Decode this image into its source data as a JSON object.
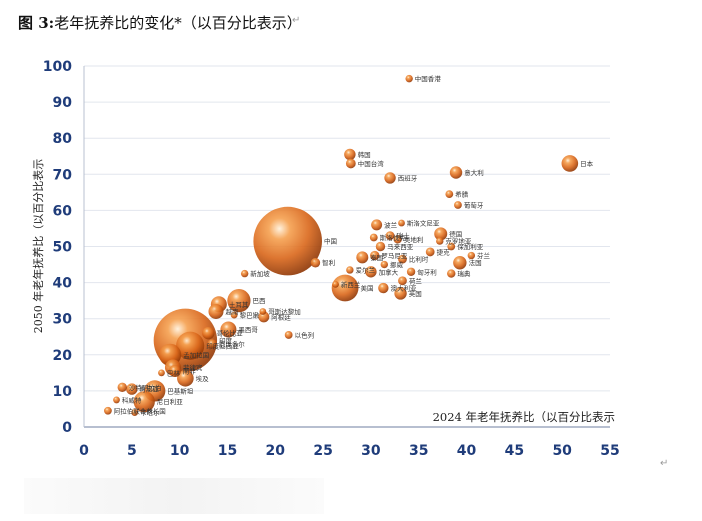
{
  "figure": {
    "caption_label": "图 3:",
    "caption_text": "老年抚养比的变化*（以百分比表示）",
    "return_mark": "↵"
  },
  "chart_data": {
    "type": "scatter",
    "subtype": "bubble",
    "xlabel": "2024 年老年抚养比（以百分比表示",
    "ylabel": "2050 年老年抚养比（以百分比表示",
    "xlim": [
      0,
      55
    ],
    "ylim": [
      0,
      100
    ],
    "x_ticks": [
      "0",
      "5",
      "10",
      "15",
      "20",
      "25",
      "30",
      "35",
      "40",
      "45",
      "50",
      "55"
    ],
    "y_ticks": [
      "0",
      "10",
      "20",
      "30",
      "40",
      "50",
      "60",
      "70",
      "80",
      "90",
      "100"
    ],
    "grid": "horizontal",
    "legend": "none",
    "bubble_color": "#d9661a",
    "points": [
      {
        "label": "中国香港",
        "x": 34.0,
        "y": 96.5,
        "size": 0.5
      },
      {
        "label": "韩国",
        "x": 27.8,
        "y": 75.5,
        "size": 1.3
      },
      {
        "label": "中国台湾",
        "x": 27.9,
        "y": 73.0,
        "size": 1.0
      },
      {
        "label": "西班牙",
        "x": 32.0,
        "y": 69.0,
        "size": 1.3
      },
      {
        "label": "意大利",
        "x": 38.9,
        "y": 70.5,
        "size": 1.5
      },
      {
        "label": "日本",
        "x": 50.8,
        "y": 73.0,
        "size": 2.3
      },
      {
        "label": "希腊",
        "x": 38.2,
        "y": 64.5,
        "size": 0.6
      },
      {
        "label": "葡萄牙",
        "x": 39.1,
        "y": 61.5,
        "size": 0.6
      },
      {
        "label": "中国",
        "x": 21.3,
        "y": 51.5,
        "size": 12.5
      },
      {
        "label": "波兰",
        "x": 30.6,
        "y": 56.0,
        "size": 1.2
      },
      {
        "label": "斯洛文尼亚",
        "x": 33.2,
        "y": 56.5,
        "size": 0.4
      },
      {
        "label": "德国",
        "x": 37.3,
        "y": 53.5,
        "size": 1.6
      },
      {
        "label": "斯洛伐克",
        "x": 30.3,
        "y": 52.5,
        "size": 0.6
      },
      {
        "label": "瑞士",
        "x": 32.0,
        "y": 53.0,
        "size": 0.8
      },
      {
        "label": "奥地利",
        "x": 32.8,
        "y": 52.0,
        "size": 0.7
      },
      {
        "label": "克罗地亚",
        "x": 37.2,
        "y": 51.5,
        "size": 0.5
      },
      {
        "label": "保加利亚",
        "x": 38.4,
        "y": 50.0,
        "size": 0.6
      },
      {
        "label": "马来西亚",
        "x": 31.0,
        "y": 50.0,
        "size": 0.9
      },
      {
        "label": "捷克",
        "x": 36.2,
        "y": 48.5,
        "size": 0.8
      },
      {
        "label": "泰国",
        "x": 29.1,
        "y": 47.0,
        "size": 1.4
      },
      {
        "label": "罗马尼亚",
        "x": 30.4,
        "y": 47.5,
        "size": 0.9
      },
      {
        "label": "比利时",
        "x": 33.3,
        "y": 46.5,
        "size": 0.8
      },
      {
        "label": "芬兰",
        "x": 40.5,
        "y": 47.5,
        "size": 0.5
      },
      {
        "label": "智利",
        "x": 24.2,
        "y": 45.5,
        "size": 0.9
      },
      {
        "label": "挪威",
        "x": 31.4,
        "y": 45.0,
        "size": 0.5
      },
      {
        "label": "法国",
        "x": 39.3,
        "y": 45.5,
        "size": 1.7
      },
      {
        "label": "爱尔兰",
        "x": 27.8,
        "y": 43.5,
        "size": 0.5
      },
      {
        "label": "加拿大",
        "x": 30.0,
        "y": 43.0,
        "size": 1.3
      },
      {
        "label": "匈牙利",
        "x": 34.2,
        "y": 43.0,
        "size": 0.7
      },
      {
        "label": "瑞典",
        "x": 38.4,
        "y": 42.5,
        "size": 0.7
      },
      {
        "label": "新加坡",
        "x": 16.8,
        "y": 42.5,
        "size": 0.5
      },
      {
        "label": "荷兰",
        "x": 33.3,
        "y": 40.5,
        "size": 0.8
      },
      {
        "label": "新西兰",
        "x": 26.3,
        "y": 39.5,
        "size": 0.4
      },
      {
        "label": "澳大利亚",
        "x": 31.3,
        "y": 38.5,
        "size": 1.1
      },
      {
        "label": "美国",
        "x": 27.3,
        "y": 38.5,
        "size": 4.3
      },
      {
        "label": "英国",
        "x": 33.1,
        "y": 37.0,
        "size": 1.5
      },
      {
        "label": "土耳其",
        "x": 14.1,
        "y": 34.0,
        "size": 2.2
      },
      {
        "label": "巴西",
        "x": 16.2,
        "y": 35.0,
        "size": 3.6
      },
      {
        "label": "越南",
        "x": 13.8,
        "y": 32.0,
        "size": 2.0
      },
      {
        "label": "哥斯达黎加",
        "x": 18.7,
        "y": 32.0,
        "size": 0.4
      },
      {
        "label": "阿根廷",
        "x": 18.8,
        "y": 30.5,
        "size": 1.2
      },
      {
        "label": "黎巴嫩",
        "x": 15.7,
        "y": 31.0,
        "size": 0.4
      },
      {
        "label": "印度",
        "x": 10.6,
        "y": 24.0,
        "size": 11.5
      },
      {
        "label": "哥伦比亚",
        "x": 13.0,
        "y": 26.0,
        "size": 1.5
      },
      {
        "label": "墨西哥",
        "x": 15.1,
        "y": 27.0,
        "size": 2.2
      },
      {
        "label": "以色列",
        "x": 21.4,
        "y": 25.5,
        "size": 0.6
      },
      {
        "label": "厄瓜多尔",
        "x": 13.4,
        "y": 23.0,
        "size": 0.9
      },
      {
        "label": "印度尼西亚",
        "x": 11.1,
        "y": 22.5,
        "size": 4.6
      },
      {
        "label": "孟加拉国",
        "x": 9.0,
        "y": 20.0,
        "size": 3.4
      },
      {
        "label": "南非",
        "x": 9.5,
        "y": 15.5,
        "size": 1.4
      },
      {
        "label": "菲律宾",
        "x": 9.3,
        "y": 16.5,
        "size": 2.2
      },
      {
        "label": "巴林",
        "x": 8.1,
        "y": 15.0,
        "size": 0.4
      },
      {
        "label": "埃及",
        "x": 10.6,
        "y": 13.5,
        "size": 2.3
      },
      {
        "label": "沙特阿拉伯",
        "x": 4.0,
        "y": 11.0,
        "size": 0.9
      },
      {
        "label": "肯尼亚",
        "x": 5.0,
        "y": 10.5,
        "size": 1.3
      },
      {
        "label": "巴基斯坦",
        "x": 7.4,
        "y": 10.0,
        "size": 3.2
      },
      {
        "label": "科威特",
        "x": 3.4,
        "y": 7.5,
        "size": 0.4
      },
      {
        "label": "尼日利亚",
        "x": 6.3,
        "y": 7.0,
        "size": 3.2
      },
      {
        "label": "阿拉伯联合酋长国",
        "x": 2.5,
        "y": 4.5,
        "size": 0.6
      },
      {
        "label": "卡塔尔",
        "x": 5.3,
        "y": 4.0,
        "size": 0.4
      }
    ]
  }
}
